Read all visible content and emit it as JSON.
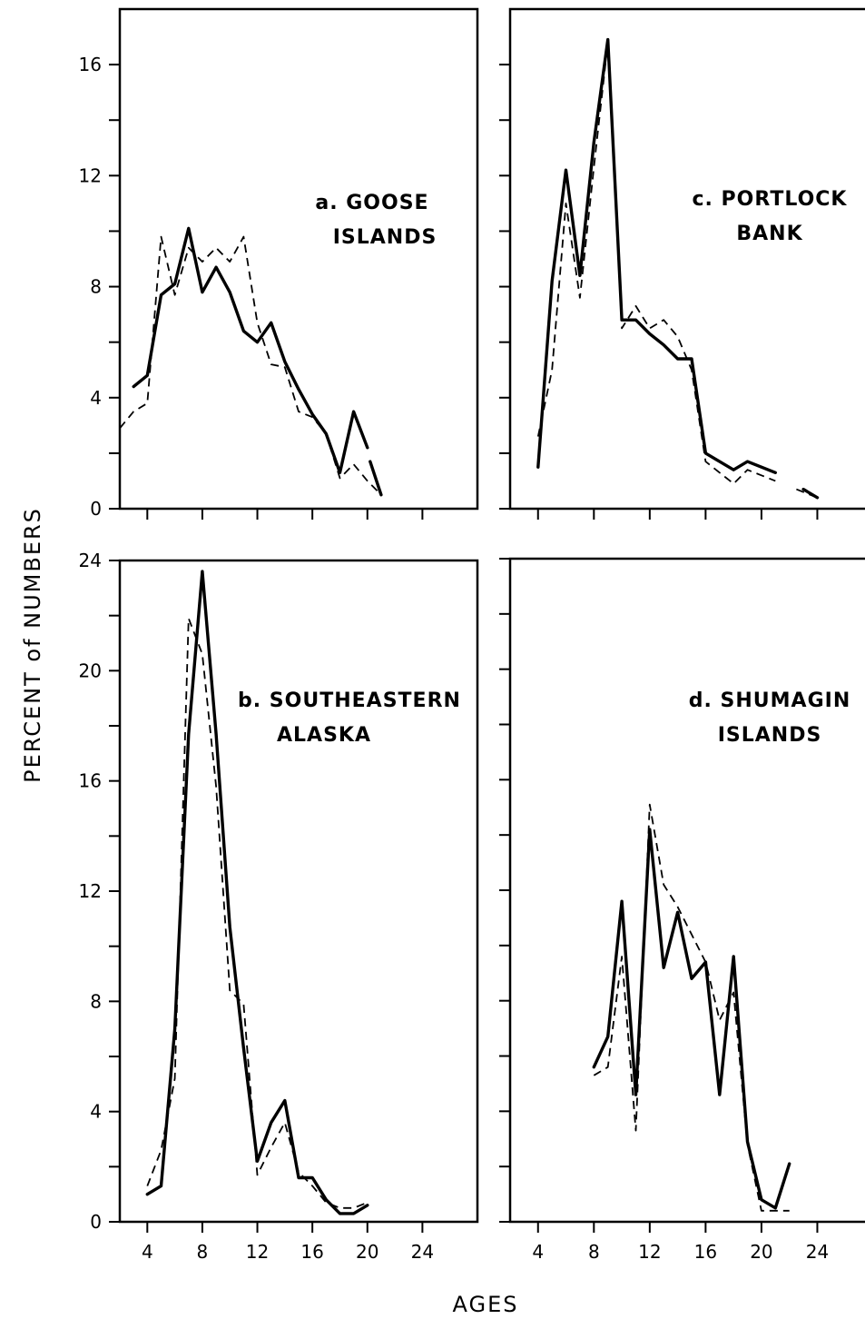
{
  "ylabel": "PERCENT of NUMBERS",
  "xlabel": "AGES",
  "chart_data": [
    {
      "id": "a",
      "type": "line",
      "title_lines": [
        "a. GOOSE",
        "ISLANDS"
      ],
      "xlim": [
        2,
        28
      ],
      "ylim": [
        0,
        18
      ],
      "xticks": [
        4,
        8,
        12,
        16,
        20,
        24
      ],
      "xtick_labels": [
        "",
        "",
        "",
        "",
        "",
        ""
      ],
      "yticks": [
        0,
        2,
        4,
        6,
        8,
        10,
        12,
        14,
        16
      ],
      "ytick_labels": [
        "0",
        "",
        "4",
        "",
        "8",
        "",
        "12",
        "",
        "16"
      ],
      "series": [
        {
          "style": "solid",
          "segments": [
            {
              "x": [
                3,
                4,
                5,
                6,
                7,
                8,
                9,
                10,
                11,
                12,
                13,
                14,
                15,
                16,
                17,
                18,
                19,
                20
              ],
              "y": [
                4.4,
                4.8,
                7.7,
                8.1,
                10.1,
                7.8,
                8.7,
                7.8,
                6.4,
                6.0,
                6.7,
                5.3,
                4.3,
                3.4,
                2.7,
                1.3,
                3.5,
                2.2
              ]
            },
            {
              "x": [
                20.2,
                21
              ],
              "y": [
                1.7,
                0.5
              ]
            }
          ]
        },
        {
          "style": "dashed",
          "segments": [
            {
              "x": [
                2,
                3,
                4,
                5,
                6,
                7,
                8,
                9,
                10,
                11,
                12,
                13,
                14,
                15,
                16,
                17,
                18,
                19,
                20,
                21
              ],
              "y": [
                2.9,
                3.5,
                3.8,
                9.8,
                7.7,
                9.4,
                8.9,
                9.4,
                8.9,
                9.8,
                6.7,
                5.2,
                5.1,
                3.5,
                3.3,
                2.7,
                1.1,
                1.6,
                1.0,
                0.5
              ]
            }
          ]
        }
      ]
    },
    {
      "id": "c",
      "type": "line",
      "title_lines": [
        "c. PORTLOCK",
        "BANK"
      ],
      "xlim": [
        2,
        28
      ],
      "ylim": [
        0,
        18
      ],
      "xticks": [
        4,
        8,
        12,
        16,
        20,
        24
      ],
      "xtick_labels": [
        "",
        "",
        "",
        "",
        "",
        ""
      ],
      "yticks": [
        0,
        2,
        4,
        6,
        8,
        10,
        12,
        14,
        16
      ],
      "ytick_labels": [
        "",
        "",
        "",
        "",
        "",
        "",
        "",
        "",
        ""
      ],
      "series": [
        {
          "style": "solid",
          "segments": [
            {
              "x": [
                4,
                5,
                6,
                7,
                8,
                9,
                10,
                11,
                12,
                13,
                14,
                15,
                16,
                17,
                18,
                19,
                20,
                21
              ],
              "y": [
                1.5,
                8.2,
                12.2,
                8.4,
                13.2,
                16.9,
                6.8,
                6.8,
                6.3,
                5.9,
                5.4,
                5.4,
                2.0,
                1.7,
                1.4,
                1.7,
                1.5,
                1.3
              ]
            },
            {
              "x": [
                23,
                24
              ],
              "y": [
                0.7,
                0.4
              ]
            }
          ]
        },
        {
          "style": "dashed",
          "segments": [
            {
              "x": [
                4,
                5,
                6,
                7,
                8,
                9,
                10,
                11,
                12,
                13,
                14,
                15,
                16,
                17,
                18,
                19,
                20,
                21
              ],
              "y": [
                2.6,
                5.0,
                11.0,
                7.6,
                12.3,
                16.8,
                6.5,
                7.3,
                6.5,
                6.8,
                6.2,
                5.0,
                1.7,
                1.3,
                0.9,
                1.4,
                1.2,
                1.0
              ]
            },
            {
              "x": [
                22.5,
                24
              ],
              "y": [
                0.7,
                0.4
              ]
            }
          ]
        }
      ]
    },
    {
      "id": "b",
      "type": "line",
      "title_lines": [
        "b. SOUTHEASTERN",
        "ALASKA"
      ],
      "xlim": [
        2,
        28
      ],
      "ylim": [
        0,
        24
      ],
      "xticks": [
        4,
        8,
        12,
        16,
        20,
        24
      ],
      "xtick_labels": [
        "4",
        "8",
        "12",
        "16",
        "20",
        "24"
      ],
      "yticks": [
        0,
        2,
        4,
        6,
        8,
        10,
        12,
        14,
        16,
        18,
        20,
        22,
        24
      ],
      "ytick_labels": [
        "0",
        "",
        "4",
        "",
        "8",
        "",
        "12",
        "",
        "16",
        "",
        "20",
        "",
        "24"
      ],
      "series": [
        {
          "style": "solid",
          "segments": [
            {
              "x": [
                4,
                5,
                6,
                7,
                8,
                9,
                10,
                11,
                12,
                13,
                14,
                15,
                16,
                17,
                18,
                19,
                20
              ],
              "y": [
                1.0,
                1.3,
                7.0,
                17.7,
                23.6,
                17.7,
                10.7,
                6.3,
                2.2,
                3.6,
                4.4,
                1.6,
                1.6,
                0.8,
                0.3,
                0.3,
                0.6
              ]
            }
          ]
        },
        {
          "style": "dashed",
          "segments": [
            {
              "x": [
                4,
                5,
                6,
                7,
                8,
                9,
                10,
                11,
                12,
                13,
                14,
                15,
                16,
                17,
                18,
                19,
                20
              ],
              "y": [
                1.3,
                2.6,
                5.2,
                21.9,
                20.6,
                15.8,
                8.4,
                7.9,
                1.7,
                2.7,
                3.6,
                1.8,
                1.3,
                0.7,
                0.5,
                0.5,
                0.7
              ]
            }
          ]
        }
      ]
    },
    {
      "id": "d",
      "type": "line",
      "title_lines": [
        "d. SHUMAGIN",
        "ISLANDS"
      ],
      "xlim": [
        2,
        28
      ],
      "ylim": [
        0,
        24
      ],
      "xticks": [
        4,
        8,
        12,
        16,
        20,
        24
      ],
      "xtick_labels": [
        "4",
        "8",
        "12",
        "16",
        "20",
        "24"
      ],
      "yticks": [
        0,
        2,
        4,
        6,
        8,
        10,
        12,
        14,
        16,
        18,
        20,
        22,
        24
      ],
      "ytick_labels": [
        "",
        "",
        "",
        "",
        "",
        "",
        "",
        "",
        "",
        "",
        "",
        "",
        ""
      ],
      "series": [
        {
          "style": "solid",
          "segments": [
            {
              "x": [
                8,
                9,
                10,
                11,
                12,
                13,
                14,
                15,
                16,
                17,
                18,
                19,
                20,
                21,
                22
              ],
              "y": [
                5.6,
                6.7,
                11.6,
                4.6,
                14.2,
                9.2,
                11.2,
                8.8,
                9.4,
                4.6,
                9.6,
                2.9,
                0.8,
                0.5,
                2.1
              ]
            }
          ]
        },
        {
          "style": "dashed",
          "segments": [
            {
              "x": [
                8,
                9,
                10,
                11,
                12,
                13,
                14,
                15,
                16,
                17,
                18,
                19,
                20,
                21,
                22
              ],
              "y": [
                5.3,
                5.6,
                9.6,
                3.3,
                15.1,
                12.2,
                11.4,
                10.4,
                9.4,
                7.3,
                8.3,
                2.8,
                0.4,
                0.4,
                0.4
              ]
            }
          ]
        }
      ]
    }
  ]
}
